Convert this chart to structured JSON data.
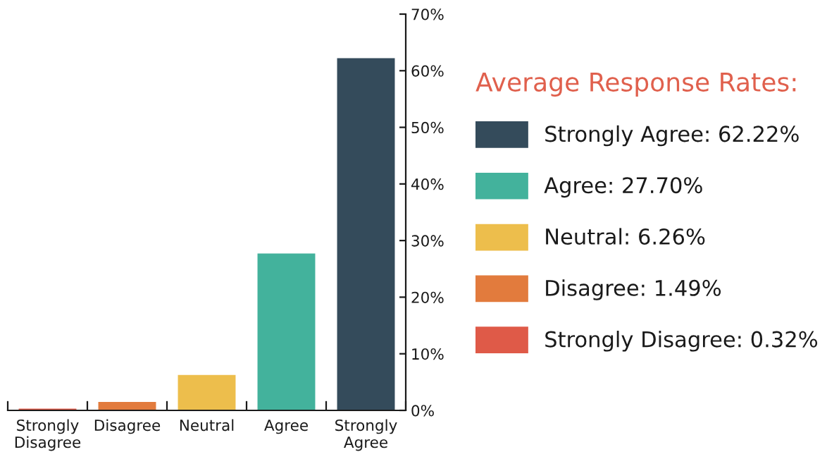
{
  "chart_data": {
    "type": "bar",
    "categories": [
      "Strongly Disagree",
      "Disagree",
      "Neutral",
      "Agree",
      "Strongly Agree"
    ],
    "series": [
      {
        "name": "Strongly Agree: 62.22%",
        "color": "#344b5b",
        "values": [
          null,
          null,
          null,
          null,
          62.22
        ]
      },
      {
        "name": "Agree: 27.70%",
        "color": "#43b29c",
        "values": [
          null,
          null,
          null,
          27.7,
          null
        ]
      },
      {
        "name": "Neutral: 6.26%",
        "color": "#edbe4c",
        "values": [
          null,
          null,
          6.26,
          null,
          null
        ]
      },
      {
        "name": "Disagree: 1.49%",
        "color": "#e27b3d",
        "values": [
          null,
          1.49,
          null,
          null,
          null
        ]
      },
      {
        "name": "Strongly Disagree: 0.32%",
        "color": "#df5a48",
        "values": [
          0.32,
          null,
          null,
          null,
          null
        ]
      }
    ],
    "legend_title": "Average Response Rates:",
    "legend": "right",
    "ylim": [
      0,
      70
    ],
    "yticks": [
      {
        "value": 0,
        "label": "0%"
      },
      {
        "value": 10,
        "label": "10%"
      },
      {
        "value": 20,
        "label": "20%"
      },
      {
        "value": 30,
        "label": "30%"
      },
      {
        "value": 40,
        "label": "40%"
      },
      {
        "value": 50,
        "label": "50%"
      },
      {
        "value": 60,
        "label": "60%"
      },
      {
        "value": 70,
        "label": "70%"
      }
    ]
  }
}
